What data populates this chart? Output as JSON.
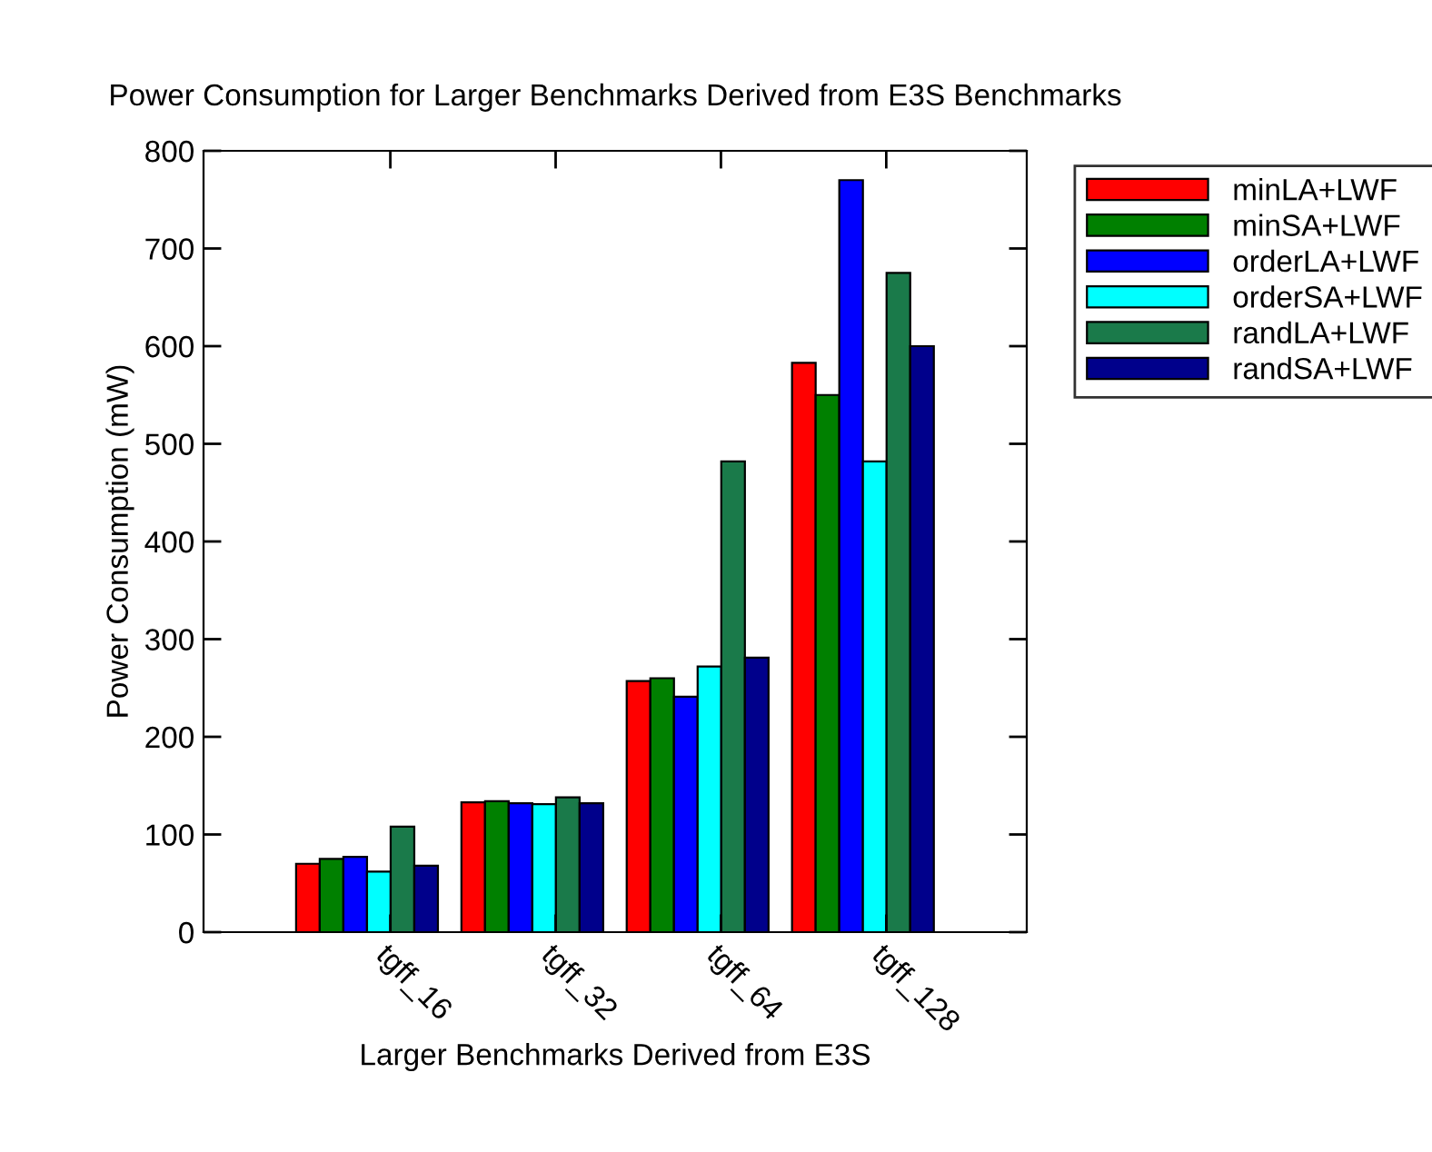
{
  "chart_data": {
    "type": "bar",
    "title": "Power Consumption for Larger Benchmarks Derived from E3S Benchmarks",
    "xlabel": "Larger Benchmarks Derived from E3S",
    "ylabel": "Power Consumption (mW)",
    "categories": [
      "tgff_16",
      "tgff_32",
      "tgff_64",
      "tgff_128"
    ],
    "series": [
      {
        "name": "minLA+LWF",
        "color": "#ff0000",
        "values": [
          70,
          133,
          257,
          583
        ]
      },
      {
        "name": "minSA+LWF",
        "color": "#008000",
        "values": [
          75,
          134,
          260,
          550
        ]
      },
      {
        "name": "orderLA+LWF",
        "color": "#0000ff",
        "values": [
          77,
          132,
          241,
          770
        ]
      },
      {
        "name": "orderSA+LWF",
        "color": "#00ffff",
        "values": [
          62,
          131,
          272,
          482
        ]
      },
      {
        "name": "randLA+LWF",
        "color": "#1a7a4a",
        "values": [
          108,
          138,
          482,
          675
        ]
      },
      {
        "name": "randSA+LWF",
        "color": "#00008b",
        "values": [
          68,
          132,
          281,
          600
        ]
      }
    ],
    "ylim": [
      0,
      800
    ],
    "yticks": [
      0,
      100,
      200,
      300,
      400,
      500,
      600,
      700,
      800
    ],
    "grid": false,
    "legend": "top right"
  }
}
